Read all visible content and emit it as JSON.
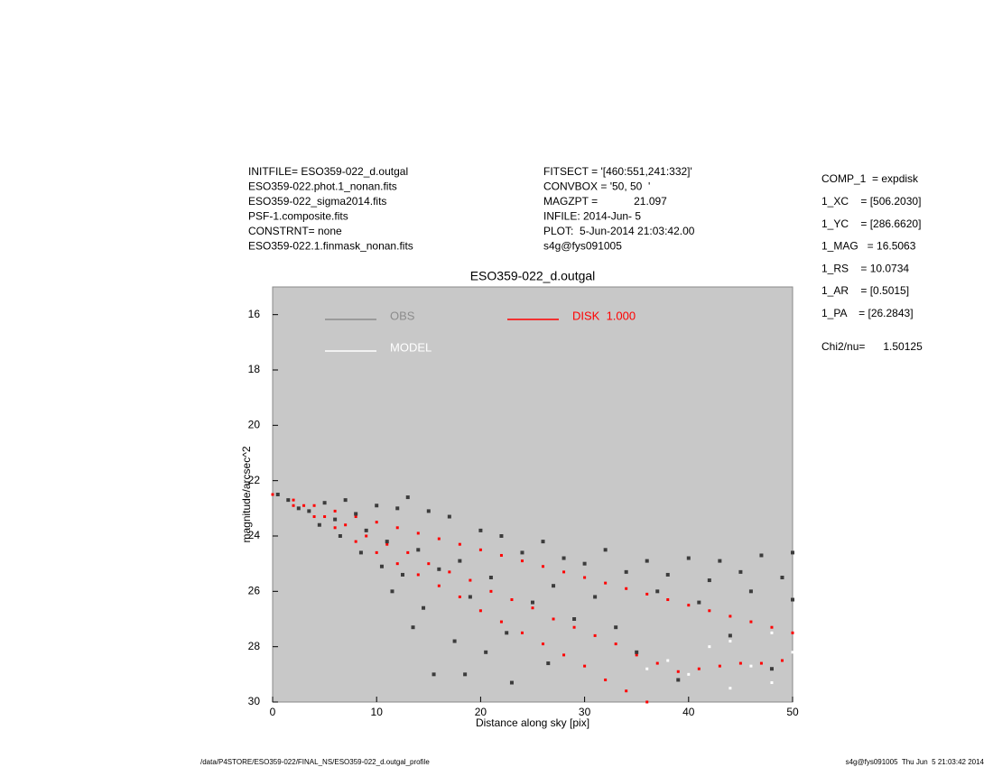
{
  "header": {
    "left": [
      "INITFILE= ESO359-022_d.outgal",
      "ESO359-022.phot.1_nonan.fits",
      "ESO359-022_sigma2014.fits",
      "PSF-1.composite.fits",
      "CONSTRNT= none",
      "ESO359-022.1.finmask_nonan.fits"
    ],
    "middle": [
      "FITSECT = '[460:551,241:332]'",
      "CONVBOX = '50, 50  '",
      "MAGZPT =            21.097",
      "INFILE: 2014-Jun- 5",
      "PLOT:  5-Jun-2014 21:03:42.00",
      "s4g@fys091005"
    ],
    "right": [
      "COMP_1  = expdisk",
      "1_XC    = [506.2030]",
      "1_YC    = [286.6620]",
      "1_MAG   = 16.5063",
      "1_RS    = 10.0734",
      "1_AR    = [0.5015]",
      "1_PA    = [26.2843]"
    ],
    "chi": "Chi2/nu=      1.50125"
  },
  "footer": {
    "left": "/data/P4STORE/ESO359-022/FINAL_NS/ESO359-022_d.outgal_profile",
    "right": "s4g@fys091005  Thu Jun  5 21:03:42 2014"
  },
  "chart_data": {
    "type": "scatter",
    "title": "ESO359-022_d.outgal",
    "x_label": "Distance along sky [pix]",
    "y_label": "magnitude/arcsec^2",
    "xlim": [
      0,
      50
    ],
    "xticks": [
      0,
      10,
      20,
      30,
      40,
      50
    ],
    "ylim": [
      30,
      15
    ],
    "yticks": [
      16,
      18,
      20,
      22,
      24,
      26,
      28,
      30
    ],
    "series": [
      {
        "name": "OBS",
        "color": "#3c3c3c",
        "legend_color": "#8c8c8c",
        "x": [
          0.5,
          1.5,
          2.5,
          3.5,
          4.5,
          5,
          6,
          6.5,
          7,
          8,
          8.5,
          9,
          10,
          10.5,
          11,
          11.5,
          12,
          12.5,
          13,
          13.5,
          14,
          14.5,
          15,
          15.5,
          16,
          17,
          17.5,
          18,
          18.5,
          19,
          20,
          20.5,
          21,
          22,
          22.5,
          23,
          24,
          25,
          26,
          26.5,
          27,
          28,
          29,
          30,
          31,
          32,
          33,
          34,
          35,
          36,
          37,
          38,
          39,
          40,
          41,
          42,
          43,
          44,
          45,
          46,
          47,
          48,
          49,
          50,
          50
        ],
        "values": [
          22.5,
          22.7,
          23.0,
          23.1,
          23.6,
          22.8,
          23.4,
          24.0,
          22.7,
          23.2,
          24.6,
          23.8,
          22.9,
          25.1,
          24.2,
          26.0,
          23.0,
          25.4,
          22.6,
          27.3,
          24.5,
          26.6,
          23.1,
          29.0,
          25.2,
          23.3,
          27.8,
          24.9,
          29.0,
          26.2,
          23.8,
          28.2,
          25.5,
          24.0,
          27.5,
          29.3,
          24.6,
          26.4,
          24.2,
          28.6,
          25.8,
          24.8,
          27.0,
          25.0,
          26.2,
          24.5,
          27.3,
          25.3,
          28.2,
          24.9,
          26.0,
          25.4,
          29.2,
          24.8,
          26.4,
          25.6,
          24.9,
          27.6,
          25.3,
          26.0,
          24.7,
          28.8,
          25.5,
          26.3,
          24.6
        ]
      },
      {
        "name": "MODEL",
        "color": "#ffffff",
        "legend_color": "#ffffff",
        "x": [
          36,
          38,
          40,
          42,
          44,
          44,
          46,
          48,
          48,
          50
        ],
        "values": [
          28.8,
          28.5,
          29.0,
          28.0,
          29.5,
          27.8,
          28.7,
          29.3,
          27.5,
          28.2
        ]
      },
      {
        "name": "DISK  1.000",
        "color": "#ff0000",
        "legend_color": "#ff0000",
        "x": [
          0,
          2,
          4,
          6,
          8,
          10,
          12,
          14,
          16,
          18,
          20,
          22,
          24,
          26,
          28,
          30,
          32,
          34,
          36,
          38,
          40,
          42,
          44,
          46,
          48,
          50,
          2,
          4,
          6,
          8,
          10,
          12,
          14,
          16,
          18,
          20,
          22,
          24,
          26,
          28,
          30,
          32,
          34,
          36,
          3,
          5,
          7,
          9,
          11,
          13,
          15,
          17,
          19,
          21,
          23,
          25,
          27,
          29,
          31,
          33,
          35,
          37,
          39,
          41,
          43,
          45,
          47,
          49
        ],
        "values": [
          22.5,
          22.7,
          22.9,
          23.1,
          23.3,
          23.5,
          23.7,
          23.9,
          24.1,
          24.3,
          24.5,
          24.7,
          24.9,
          25.1,
          25.3,
          25.5,
          25.7,
          25.9,
          26.1,
          26.3,
          26.5,
          26.7,
          26.9,
          27.1,
          27.3,
          27.5,
          22.9,
          23.3,
          23.7,
          24.2,
          24.6,
          25.0,
          25.4,
          25.8,
          26.2,
          26.7,
          27.1,
          27.5,
          27.9,
          28.3,
          28.7,
          29.2,
          29.6,
          30.0,
          22.9,
          23.3,
          23.6,
          24.0,
          24.3,
          24.6,
          25.0,
          25.3,
          25.6,
          26.0,
          26.3,
          26.6,
          27.0,
          27.3,
          27.6,
          27.9,
          28.3,
          28.6,
          28.9,
          28.8,
          28.7,
          28.6,
          28.6,
          28.5
        ]
      }
    ]
  }
}
